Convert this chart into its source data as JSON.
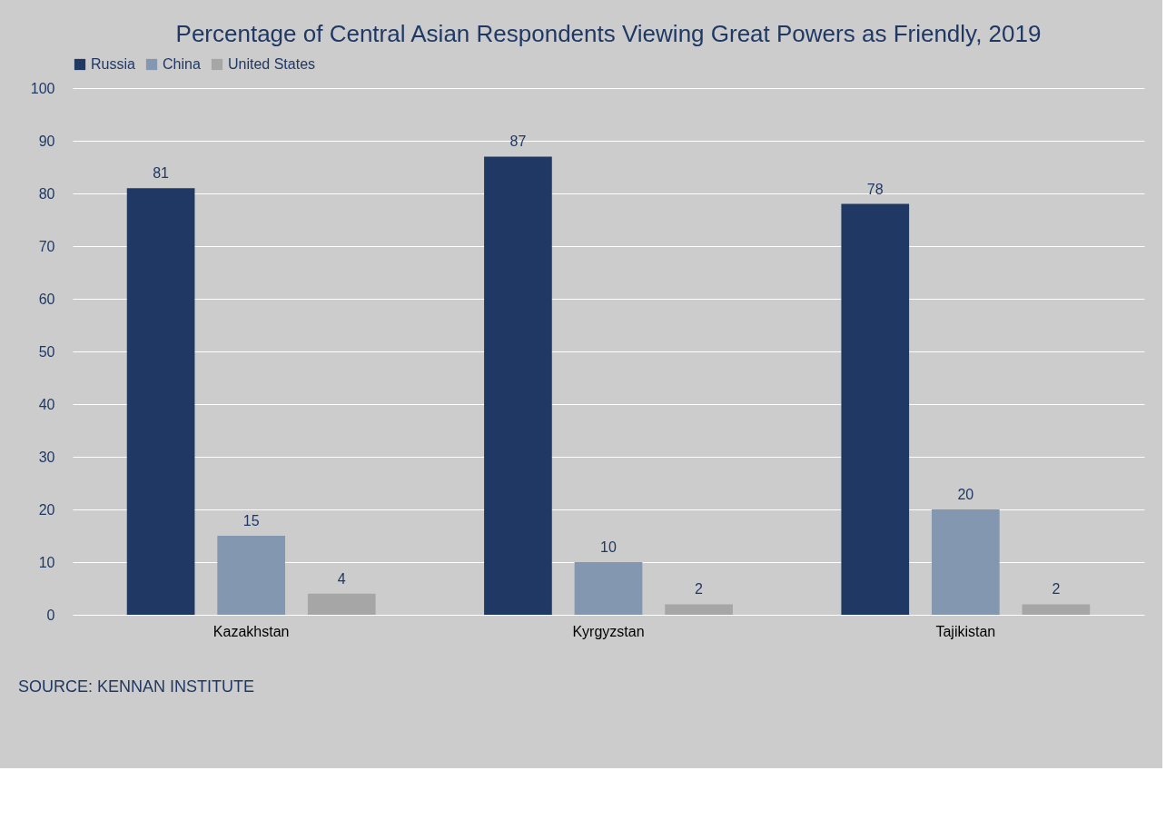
{
  "chart_data": {
    "type": "bar",
    "title": "Percentage of Central Asian Respondents Viewing Great Powers as Friendly, 2019",
    "categories": [
      "Kazakhstan",
      "Kyrgyzstan",
      "Tajikistan"
    ],
    "series": [
      {
        "name": "Russia",
        "color": "#1f3864",
        "values": [
          81,
          87,
          78
        ]
      },
      {
        "name": "China",
        "color": "#8497b0",
        "values": [
          15,
          10,
          20
        ]
      },
      {
        "name": "United States",
        "color": "#a6a6a6",
        "values": [
          4,
          2,
          2
        ]
      }
    ],
    "ylim": [
      0,
      100
    ],
    "yticks": [
      0,
      10,
      20,
      30,
      40,
      50,
      60,
      70,
      80,
      90,
      100
    ],
    "grid": "y",
    "legend": "top",
    "data_labels": true,
    "annotations": [
      "SOURCE: KENNAN INSTITUTE"
    ]
  }
}
